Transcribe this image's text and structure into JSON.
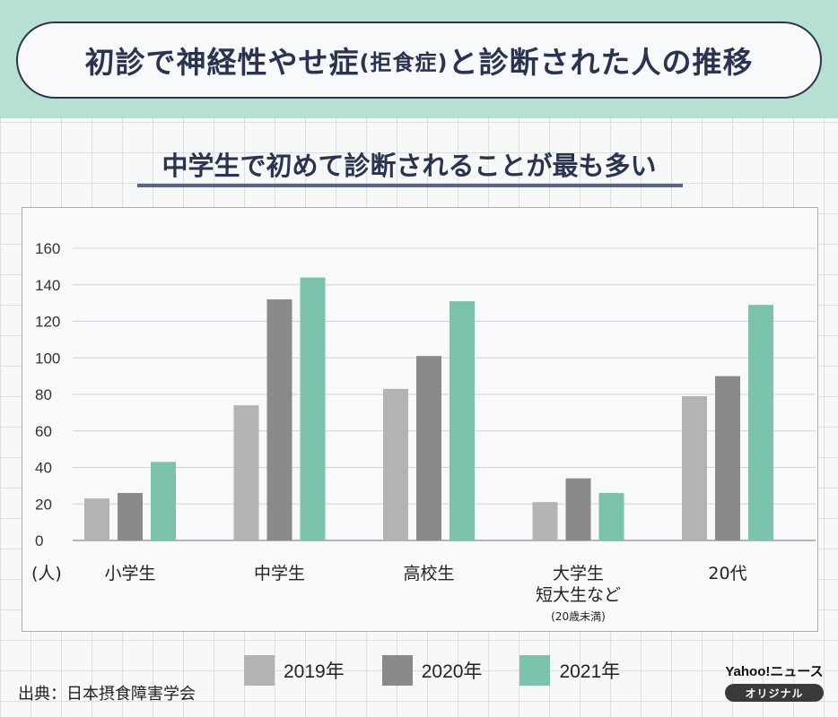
{
  "header": {
    "title_main": "初診で神経性やせ症",
    "title_paren": "(拒食症)",
    "title_tail": "と診断された人の推移"
  },
  "subtitle": "中学生で初めて診断されることが最も多い",
  "colors": {
    "header_band": "#b7dfd2",
    "title_text": "#2b3350",
    "series_2019": "#b3b3b3",
    "series_2020": "#8a8a8a",
    "series_2021": "#7cc3ad"
  },
  "chart_data": {
    "type": "bar",
    "ylabel": "(人)",
    "ylim": [
      0,
      160
    ],
    "yticks": [
      0,
      20,
      40,
      60,
      80,
      100,
      120,
      140,
      160
    ],
    "grid": true,
    "legend_position": "bottom",
    "categories": [
      {
        "label": [
          "小学生"
        ],
        "note": ""
      },
      {
        "label": [
          "中学生"
        ],
        "note": ""
      },
      {
        "label": [
          "高校生"
        ],
        "note": ""
      },
      {
        "label": [
          "大学生",
          "短大生など"
        ],
        "note": "(20歳未満)"
      },
      {
        "label": [
          "20代"
        ],
        "note": ""
      }
    ],
    "series": [
      {
        "name": "2019年",
        "color": "#b3b3b3",
        "values": [
          23,
          74,
          83,
          21,
          79
        ]
      },
      {
        "name": "2020年",
        "color": "#8a8a8a",
        "values": [
          26,
          132,
          101,
          34,
          90
        ]
      },
      {
        "name": "2021年",
        "color": "#7cc3ad",
        "values": [
          43,
          144,
          131,
          26,
          129
        ]
      }
    ]
  },
  "source": "出典：日本摂食障害学会",
  "logo": {
    "name": "Yahoo!ニュース",
    "badge": "オリジナル"
  }
}
